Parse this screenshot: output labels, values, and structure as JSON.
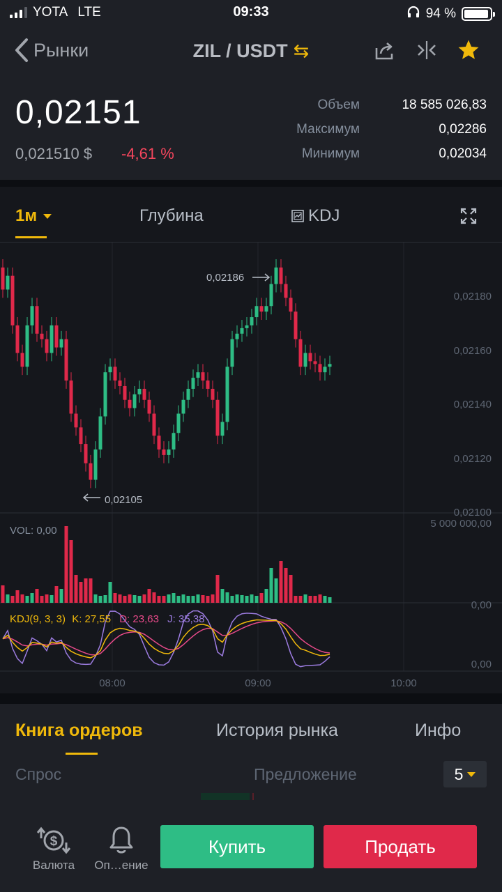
{
  "status": {
    "carrier": "YOTA",
    "network": "LTE",
    "time": "09:33",
    "battery": "94 %",
    "battery_level": 0.94
  },
  "nav": {
    "back_label": "Рынки",
    "pair": "ZIL / USDT",
    "swap_glyph": "⇆"
  },
  "ticker": {
    "price": "0,02151",
    "price_usd": "0,021510 $",
    "change": "-4,61 %",
    "stats": [
      {
        "label": "Объем",
        "value": "18 585 026,83"
      },
      {
        "label": "Максимум",
        "value": "0,02286"
      },
      {
        "label": "Минимум",
        "value": "0,02034"
      }
    ]
  },
  "chart_tabs": {
    "interval": "1м",
    "depth": "Глубина",
    "indicator": "KDJ"
  },
  "chart_data": {
    "type": "candlestick",
    "y_ticks": [
      "0,02180",
      "0,02160",
      "0,02140",
      "0,02120",
      "0,02100"
    ],
    "ylim": [
      0.02097,
      0.0219
    ],
    "high_marker": "0,02186",
    "low_marker": "0,02105",
    "vol_label": "VOL: 0,00",
    "vol_max_label": "5 000 000,00",
    "vol_zero_label": "0,00",
    "kdj_label": "KDJ(9, 3, 3)",
    "kdj_k": "K: 27,55",
    "kdj_d": "D: 23,63",
    "kdj_j": "J: 35,38",
    "kdj_zero": "0,00",
    "x_ticks": [
      "08:00",
      "09:00",
      "10:00"
    ],
    "colors": {
      "up": "#2ebd85",
      "down": "#e0294a",
      "k": "#f0b90b",
      "d": "#e84a8a",
      "j": "#9c7ce0"
    },
    "close": [
      0.02178,
      0.02183,
      0.02165,
      0.02155,
      0.0215,
      0.02165,
      0.02172,
      0.02162,
      0.0216,
      0.02155,
      0.02165,
      0.02157,
      0.0216,
      0.02145,
      0.02133,
      0.02128,
      0.02122,
      0.02115,
      0.02109,
      0.0212,
      0.02132,
      0.02148,
      0.0215,
      0.02145,
      0.02143,
      0.02138,
      0.02135,
      0.0214,
      0.02142,
      0.02138,
      0.02133,
      0.02125,
      0.0212,
      0.02118,
      0.0212,
      0.02126,
      0.02133,
      0.02138,
      0.02142,
      0.02146,
      0.02148,
      0.02145,
      0.02142,
      0.02138,
      0.02125,
      0.0213,
      0.0215,
      0.0216,
      0.02162,
      0.02164,
      0.02165,
      0.02168,
      0.02172,
      0.0217,
      0.02172,
      0.0218,
      0.02186,
      0.0218,
      0.02175,
      0.0217,
      0.0216,
      0.0215,
      0.02155,
      0.02152,
      0.02151,
      0.02148,
      0.0215,
      0.02151
    ],
    "volume": [
      0.25,
      0.12,
      0.1,
      0.18,
      0.12,
      0.1,
      0.14,
      0.2,
      0.1,
      0.12,
      0.11,
      0.24,
      0.2,
      1.1,
      0.9,
      0.4,
      0.3,
      0.35,
      0.35,
      0.12,
      0.1,
      0.11,
      0.3,
      0.14,
      0.12,
      0.1,
      0.12,
      0.11,
      0.1,
      0.12,
      0.2,
      0.15,
      0.1,
      0.1,
      0.12,
      0.14,
      0.1,
      0.12,
      0.1,
      0.1,
      0.12,
      0.11,
      0.1,
      0.12,
      0.4,
      0.2,
      0.15,
      0.1,
      0.12,
      0.11,
      0.1,
      0.12,
      0.1,
      0.14,
      0.2,
      0.5,
      0.35,
      0.6,
      0.5,
      0.4,
      0.1,
      0.1,
      0.12,
      0.1,
      0.1,
      0.12,
      0.1,
      0.08
    ]
  },
  "lower_tabs": {
    "book": "Книга ордеров",
    "history": "История рынка",
    "info": "Инфо"
  },
  "orderbook": {
    "bid": "Спрос",
    "ask": "Предложение",
    "depth": "5"
  },
  "bottom_bar": {
    "currency": "Валюта",
    "alerts": "Оп…ение",
    "buy": "Купить",
    "sell": "Продать"
  }
}
